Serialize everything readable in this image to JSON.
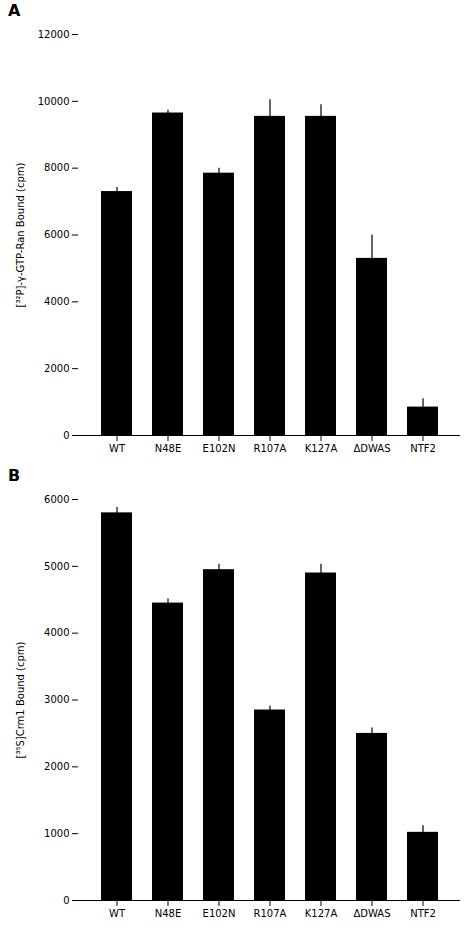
{
  "chart_data": [
    {
      "type": "bar",
      "title": "A",
      "categories": [
        "WT",
        "N48E",
        "E102N",
        "R107A",
        "K127A",
        "ΔDWAS",
        "NTF2"
      ],
      "values": [
        7300,
        9650,
        7850,
        9550,
        9550,
        5300,
        850
      ],
      "errors": [
        120,
        80,
        150,
        500,
        350,
        700,
        250
      ],
      "ylabel": "[³²P]-γ-GTP-Ran Bound (cpm)",
      "color": "#000000",
      "ylim": [
        0,
        12000
      ],
      "yticks": [
        0,
        2000,
        4000,
        6000,
        8000,
        10000,
        12000
      ],
      "grid": false
    },
    {
      "type": "bar",
      "title": "B",
      "categories": [
        "WT",
        "N48E",
        "E102N",
        "R107A",
        "K127A",
        "ΔDWAS",
        "NTF2"
      ],
      "values": [
        5800,
        4450,
        4950,
        2850,
        4900,
        2500,
        1020
      ],
      "errors": [
        80,
        60,
        80,
        60,
        130,
        80,
        100
      ],
      "ylabel": "[³⁵S]Crm1 Bound (cpm)",
      "color": "#000000",
      "ylim": [
        0,
        6000
      ],
      "yticks": [
        0,
        1000,
        2000,
        3000,
        4000,
        5000,
        6000
      ],
      "grid": false
    }
  ]
}
